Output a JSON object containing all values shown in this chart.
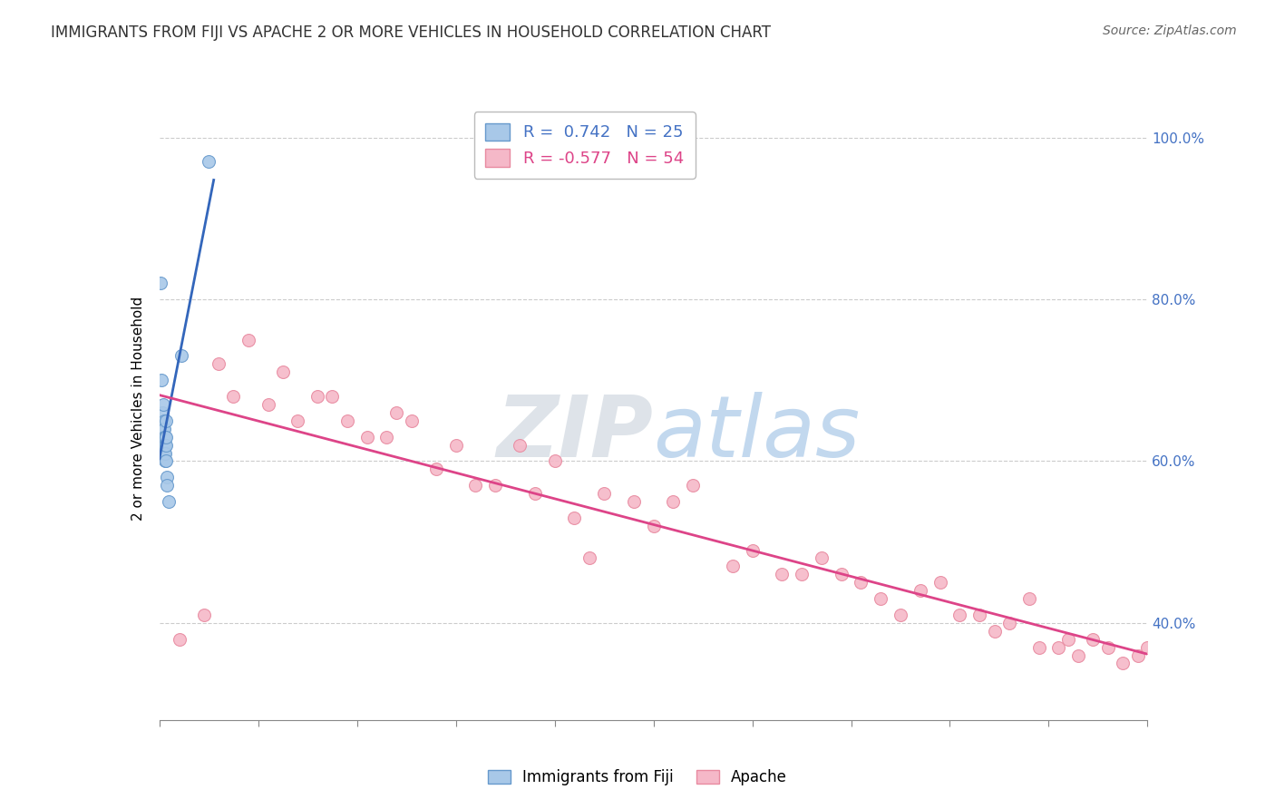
{
  "title": "IMMIGRANTS FROM FIJI VS APACHE 2 OR MORE VEHICLES IN HOUSEHOLD CORRELATION CHART",
  "source": "Source: ZipAtlas.com",
  "ylabel": "2 or more Vehicles in Household",
  "legend_fiji_r": "0.742",
  "legend_fiji_n": "25",
  "legend_apache_r": "-0.577",
  "legend_apache_n": "54",
  "watermark_zip": "ZIP",
  "watermark_atlas": "atlas",
  "xlim": [
    0,
    100
  ],
  "ylim": [
    28,
    105
  ],
  "yticks": [
    40,
    60,
    80,
    100
  ],
  "xtick_positions": [
    0,
    10,
    20,
    30,
    40,
    50,
    60,
    70,
    80,
    90,
    100
  ],
  "fiji_color": "#a8c8e8",
  "fiji_edge": "#6699cc",
  "apache_color": "#f5b8c8",
  "apache_edge": "#e88aa0",
  "trend_fiji_color": "#3366bb",
  "trend_apache_color": "#dd4488",
  "fiji_points_x": [
    0.15,
    0.2,
    0.25,
    0.3,
    0.35,
    0.4,
    0.4,
    0.45,
    0.45,
    0.5,
    0.5,
    0.5,
    0.55,
    0.55,
    0.6,
    0.6,
    0.65,
    0.65,
    0.7,
    0.7,
    0.75,
    0.8,
    0.9,
    2.2,
    5.0
  ],
  "fiji_points_y": [
    82,
    70,
    64,
    66,
    64,
    67,
    63,
    65,
    62,
    64,
    63,
    61,
    62,
    60,
    63,
    61,
    62,
    60,
    65,
    63,
    58,
    57,
    55,
    73,
    97
  ],
  "apache_points_x": [
    2.0,
    4.5,
    6.0,
    7.5,
    9.0,
    11.0,
    12.5,
    14.0,
    16.0,
    17.5,
    19.0,
    21.0,
    23.0,
    24.0,
    25.5,
    28.0,
    30.0,
    32.0,
    34.0,
    36.5,
    38.0,
    40.0,
    42.0,
    43.5,
    45.0,
    48.0,
    50.0,
    52.0,
    54.0,
    58.0,
    60.0,
    63.0,
    65.0,
    67.0,
    69.0,
    71.0,
    73.0,
    75.0,
    77.0,
    79.0,
    81.0,
    83.0,
    84.5,
    86.0,
    88.0,
    89.0,
    91.0,
    92.0,
    93.0,
    94.5,
    96.0,
    97.5,
    99.0,
    100.0
  ],
  "apache_points_y": [
    38,
    41,
    72,
    68,
    75,
    67,
    71,
    65,
    68,
    68,
    65,
    63,
    63,
    66,
    65,
    59,
    62,
    57,
    57,
    62,
    56,
    60,
    53,
    48,
    56,
    55,
    52,
    55,
    57,
    47,
    49,
    46,
    46,
    48,
    46,
    45,
    43,
    41,
    44,
    45,
    41,
    41,
    39,
    40,
    43,
    37,
    37,
    38,
    36,
    38,
    37,
    35,
    36,
    37
  ],
  "title_fontsize": 12,
  "source_fontsize": 10,
  "label_fontsize": 11,
  "legend_fontsize": 13,
  "marker_size": 100,
  "background_color": "#ffffff",
  "grid_color": "#cccccc"
}
